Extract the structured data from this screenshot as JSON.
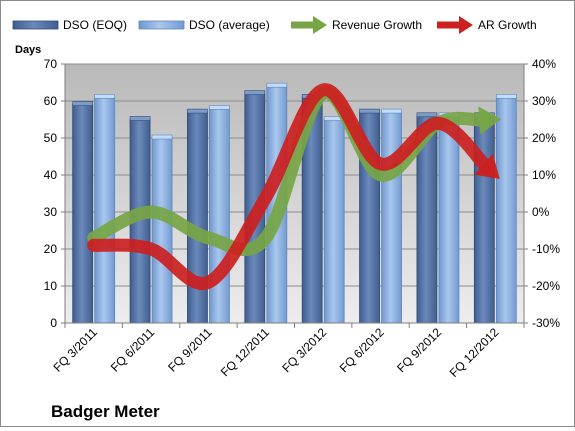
{
  "chart_data": {
    "type": "bar",
    "title": "Badger Meter",
    "ylabel": "Days",
    "categories": [
      "FQ 3/2011",
      "FQ 6/2011",
      "FQ 9/2011",
      "FQ 12/2011",
      "FQ 3/2012",
      "FQ 6/2012",
      "FQ 9/2012",
      "FQ 12/2012"
    ],
    "ylim": [
      0,
      70
    ],
    "yticks": [
      "0",
      "10",
      "20",
      "30",
      "40",
      "50",
      "60",
      "70"
    ],
    "y2lim": [
      -30,
      40
    ],
    "y2ticks": [
      "-30%",
      "-20%",
      "-10%",
      "0%",
      "10%",
      "20%",
      "30%",
      "40%"
    ],
    "grid": true,
    "legend_position": "top",
    "series": [
      {
        "name": "DSO (EOQ)",
        "kind": "bar",
        "axis": "left",
        "color": "#4f6fa0",
        "values": [
          59,
          55,
          57,
          62,
          61,
          57,
          56,
          56
        ]
      },
      {
        "name": "DSO (average)",
        "kind": "bar",
        "axis": "left",
        "color": "#8fb4e3",
        "values": [
          61,
          50,
          58,
          64,
          55,
          57,
          56,
          61
        ]
      },
      {
        "name": "Revenue Growth",
        "kind": "line-arrow",
        "axis": "right",
        "color": "#77a545",
        "values": [
          -7,
          0,
          -7,
          -7,
          32,
          10,
          24,
          25
        ]
      },
      {
        "name": "AR Growth",
        "kind": "line-arrow",
        "axis": "right",
        "color": "#cc1f1f",
        "values": [
          -9,
          -10,
          -19,
          4,
          33,
          13,
          24,
          10
        ]
      }
    ]
  }
}
